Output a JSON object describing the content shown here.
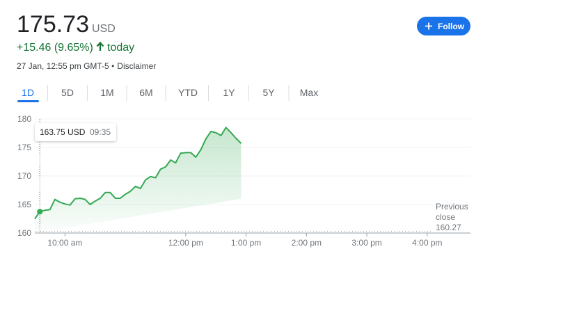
{
  "header": {
    "price": "175.73",
    "currency": "USD",
    "change": "+15.46 (9.65%)",
    "period": "today",
    "timestamp": "27 Jan, 12:55 pm GMT-5 •",
    "disclaimer": "Disclaimer",
    "follow_button": "Follow"
  },
  "tabs": [
    "1D",
    "5D",
    "1M",
    "6M",
    "YTD",
    "1Y",
    "5Y",
    "Max"
  ],
  "tooltip": {
    "value_label": "163.75 USD",
    "time": "09:35"
  },
  "chart_data": {
    "type": "line",
    "color": "#34a853",
    "x": [
      "09:30",
      "09:35",
      "09:40",
      "09:45",
      "09:50",
      "09:55",
      "10:00",
      "10:05",
      "10:10",
      "10:15",
      "10:20",
      "10:25",
      "10:30",
      "10:35",
      "10:40",
      "10:45",
      "10:50",
      "10:55",
      "11:00",
      "11:05",
      "11:10",
      "11:15",
      "11:20",
      "11:25",
      "11:30",
      "11:35",
      "11:40",
      "11:45",
      "11:50",
      "11:55",
      "12:00",
      "12:05",
      "12:10",
      "12:15",
      "12:20",
      "12:25",
      "12:30",
      "12:35",
      "12:40",
      "12:45",
      "12:50",
      "12:55"
    ],
    "values": [
      162.5,
      163.75,
      164.0,
      164.1,
      165.9,
      165.4,
      165.1,
      164.9,
      166.0,
      166.1,
      165.9,
      165.0,
      165.6,
      166.1,
      167.1,
      167.1,
      166.1,
      166.1,
      166.8,
      167.3,
      168.2,
      167.8,
      169.3,
      169.9,
      169.7,
      171.2,
      171.6,
      172.8,
      172.3,
      174.0,
      174.1,
      174.1,
      173.3,
      174.6,
      176.5,
      177.8,
      177.6,
      177.1,
      178.5,
      177.6,
      176.6,
      175.73
    ],
    "xlim": [
      "09:30",
      "16:43"
    ],
    "xticks": [
      {
        "value": "10:00",
        "label": "10:00 am"
      },
      {
        "value": "12:00",
        "label": "12:00 pm"
      },
      {
        "value": "13:00",
        "label": "1:00 pm"
      },
      {
        "value": "14:00",
        "label": "2:00 pm"
      },
      {
        "value": "15:00",
        "label": "3:00 pm"
      },
      {
        "value": "16:00",
        "label": "4:00 pm"
      }
    ],
    "ylim": [
      160,
      180
    ],
    "yticks": [
      160,
      165,
      170,
      175,
      180
    ],
    "grid": true,
    "previous_close_label": "Previous close",
    "previous_close": 160.27,
    "highlight_index": 1
  }
}
